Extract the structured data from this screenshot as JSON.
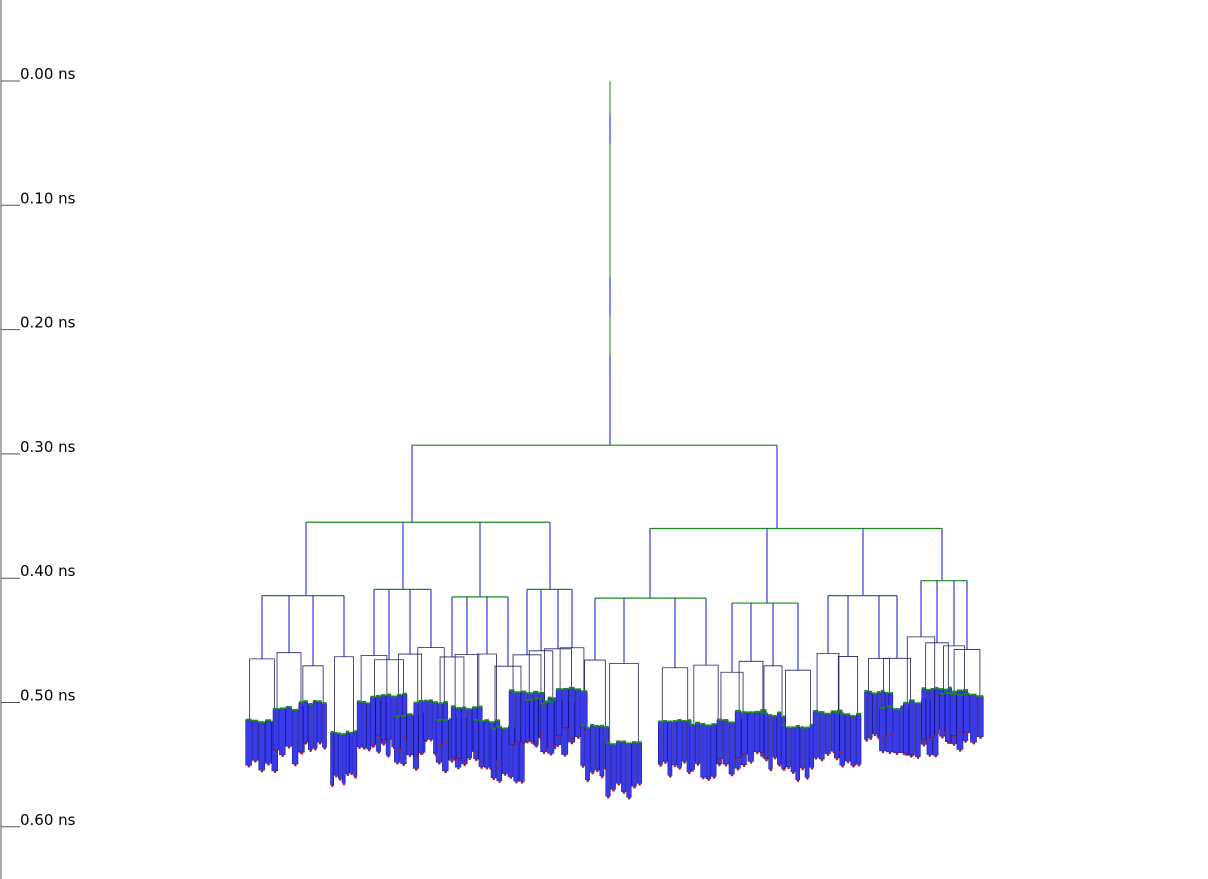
{
  "time_axis": {
    "unit": "ns",
    "ticks": [
      "0.00 ns",
      "0.10 ns",
      "0.20 ns",
      "0.30 ns",
      "0.40 ns",
      "0.50 ns",
      "0.60 ns"
    ]
  },
  "colors": {
    "axis": "#555555",
    "horizontal_wire": "#1a8a1a",
    "vertical_wire": "#1010d0",
    "buffer_fill": "#3a3ae8",
    "sink": "#a0203a"
  },
  "clock_tree": {
    "root_delay_ns": 0.0,
    "trunk_end_ns": 0.293,
    "level1": [
      {
        "x": 412,
        "delay_ns": 0.355,
        "span": [
          306,
          550
        ],
        "groups": [
          {
            "x": 306,
            "delay_ns": 0.414,
            "span": [
              262,
              344
            ],
            "stems": [
              262,
              289,
              313,
              344
            ],
            "leaf_delay_ns": [
              0.515,
              0.505,
              0.5,
              0.525
            ]
          },
          {
            "x": 403,
            "delay_ns": 0.409,
            "span": [
              374,
              431
            ],
            "stems": [
              374,
              389,
              410,
              431
            ],
            "leaf_delay_ns": [
              0.5,
              0.495,
              0.51,
              0.5
            ]
          },
          {
            "x": 480,
            "delay_ns": 0.415,
            "span": [
              452,
              508
            ],
            "stems": [
              452,
              467,
              487,
              508
            ],
            "leaf_delay_ns": [
              0.515,
              0.505,
              0.515,
              0.52
            ]
          },
          {
            "x": 550,
            "delay_ns": 0.409,
            "span": [
              527,
              572
            ],
            "stems": [
              527,
              541,
              558,
              572
            ],
            "leaf_delay_ns": [
              0.492,
              0.498,
              0.5,
              0.49
            ]
          }
        ]
      },
      {
        "x": 777,
        "delay_ns": 0.36,
        "span": [
          650,
          942
        ],
        "groups": [
          {
            "x": 650,
            "delay_ns": 0.416,
            "span": [
              595,
              706
            ],
            "stems": [
              595,
              624,
              675,
              706
            ],
            "leaf_delay_ns": [
              0.52,
              0.533,
              0.515,
              0.518
            ]
          },
          {
            "x": 767,
            "delay_ns": 0.42,
            "span": [
              732,
              798
            ],
            "stems": [
              732,
              751,
              773,
              798
            ],
            "leaf_delay_ns": [
              0.515,
              0.508,
              0.51,
              0.52
            ]
          },
          {
            "x": 863,
            "delay_ns": 0.414,
            "span": [
              828,
              897
            ],
            "stems": [
              828,
              848,
              879,
              897
            ],
            "leaf_delay_ns": [
              0.508,
              0.51,
              0.492,
              0.505
            ]
          },
          {
            "x": 942,
            "delay_ns": 0.402,
            "span": [
              921,
              967
            ],
            "stems": [
              921,
              937,
              954,
              967
            ],
            "leaf_delay_ns": [
              0.5,
              0.49,
              0.492,
              0.495
            ]
          }
        ]
      }
    ]
  }
}
